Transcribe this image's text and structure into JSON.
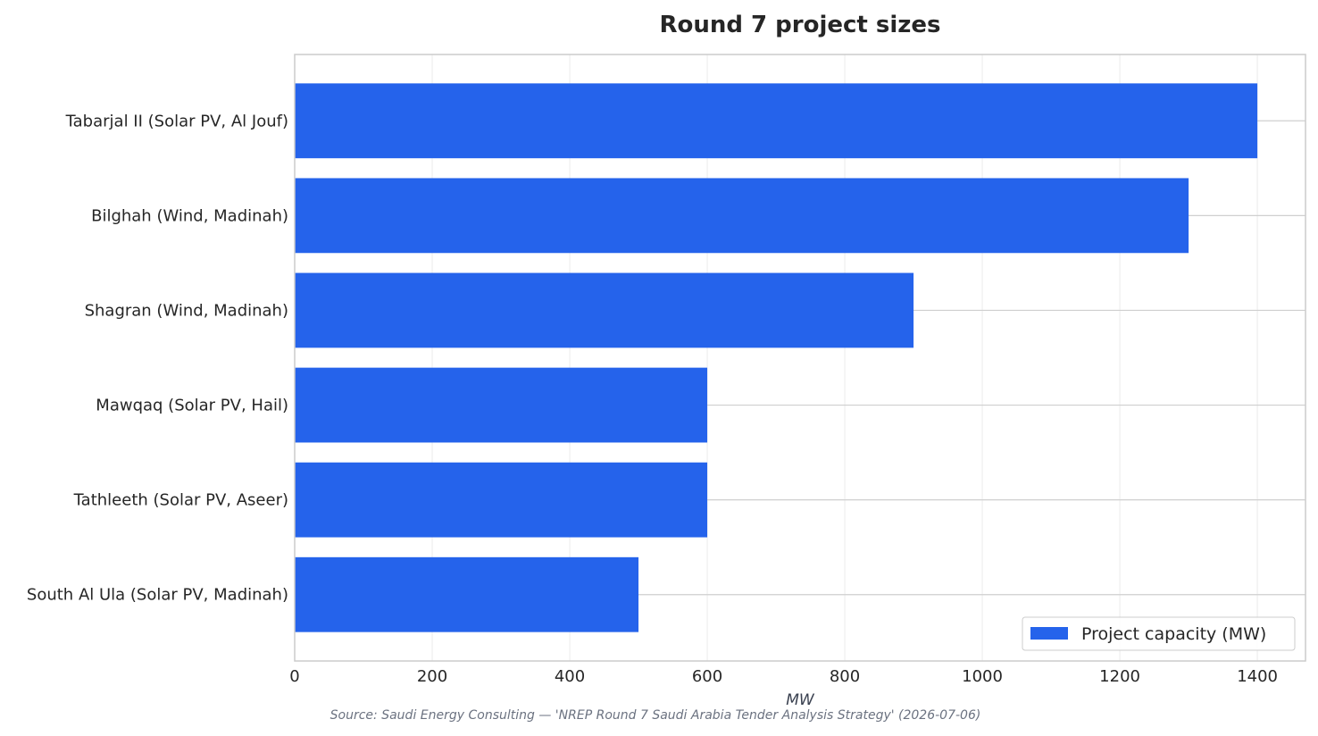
{
  "chart_data": {
    "type": "bar",
    "orientation": "horizontal",
    "title": "Round 7 project sizes",
    "xlabel": "MW",
    "ylabel": "",
    "categories": [
      "Tabarjal II (Solar PV, Al Jouf)",
      "Bilghah (Wind, Madinah)",
      "Shagran (Wind, Madinah)",
      "Mawqaq (Solar PV, Hail)",
      "Tathleeth (Solar PV, Aseer)",
      "South Al Ula (Solar PV, Madinah)"
    ],
    "series": [
      {
        "name": "Project capacity (MW)",
        "values": [
          1400,
          1300,
          900,
          600,
          600,
          500
        ],
        "color": "#2563eb"
      }
    ],
    "xlim": [
      0,
      1470
    ],
    "xticks": [
      0,
      200,
      400,
      600,
      800,
      1000,
      1200,
      1400
    ],
    "grid": true,
    "legend_position": "bottom-right",
    "source": "Source: Saudi Energy Consulting — 'NREP Round 7 Saudi Arabia Tender Analysis Strategy' (2026-07-06)"
  }
}
